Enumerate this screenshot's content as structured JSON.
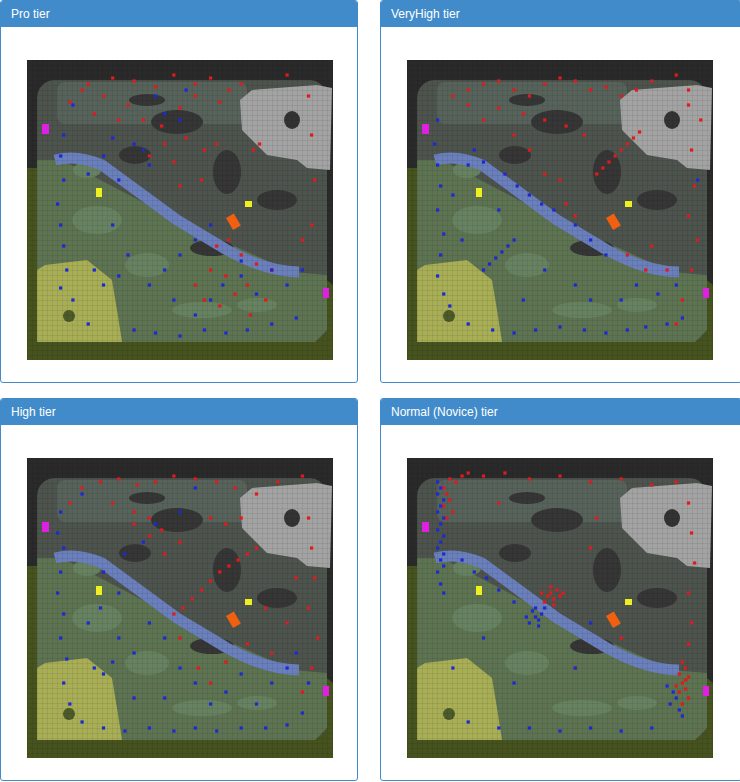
{
  "chart_data": [
    {
      "type": "scatter",
      "title": "Pro tier",
      "tick_labels": false,
      "xlim": [
        0,
        100
      ],
      "ylim": [
        0,
        100
      ],
      "series": [
        {
          "color": "#e31a1c",
          "marker": "square",
          "x": [
            20,
            28,
            35,
            42,
            48,
            55,
            60,
            66,
            25,
            33,
            38,
            44,
            50,
            52,
            58,
            62,
            74,
            76,
            45,
            48,
            40,
            30,
            22,
            18,
            14,
            55,
            63,
            70,
            92,
            93,
            94,
            93,
            85,
            60,
            65,
            68,
            72,
            70,
            63,
            58,
            75,
            66,
            62,
            55,
            73,
            80,
            78,
            90,
            57,
            50
          ],
          "values": [
            92,
            94,
            93,
            91,
            95,
            92,
            94,
            90,
            88,
            85,
            80,
            78,
            84,
            74,
            70,
            72,
            70,
            72,
            72,
            66,
            68,
            80,
            82,
            90,
            86,
            88,
            86,
            92,
            88,
            75,
            60,
            45,
            95,
            30,
            28,
            22,
            25,
            35,
            18,
            20,
            32,
            40,
            38,
            25,
            15,
            30,
            20,
            40,
            60,
            58
          ]
        },
        {
          "color": "#1c2ad6",
          "marker": "square",
          "x": [
            12,
            11,
            12,
            10,
            11,
            12,
            13,
            11,
            15,
            20,
            25,
            30,
            28,
            35,
            38,
            40,
            42,
            45,
            50,
            52,
            15,
            22,
            25,
            30,
            35,
            42,
            50,
            58,
            65,
            72,
            80,
            88,
            60,
            64,
            70,
            75,
            55,
            48,
            40,
            33,
            55,
            60,
            70,
            80,
            90,
            85,
            45,
            50,
            20,
            28
          ],
          "values": [
            75,
            68,
            60,
            52,
            45,
            38,
            30,
            24,
            20,
            62,
            68,
            60,
            74,
            72,
            70,
            65,
            88,
            82,
            80,
            90,
            85,
            30,
            25,
            28,
            10,
            9,
            8,
            10,
            9,
            10,
            12,
            14,
            20,
            25,
            28,
            22,
            15,
            20,
            25,
            35,
            40,
            45,
            33,
            30,
            30,
            25,
            30,
            35,
            12,
            45
          ]
        }
      ]
    },
    {
      "type": "scatter",
      "title": "VeryHigh tier",
      "tick_labels": false,
      "xlim": [
        0,
        100
      ],
      "ylim": [
        0,
        100
      ],
      "series": [
        {
          "color": "#e31a1c",
          "marker": "square",
          "x": [
            15,
            20,
            25,
            30,
            35,
            40,
            45,
            50,
            55,
            60,
            65,
            70,
            75,
            80,
            88,
            30,
            38,
            45,
            52,
            58,
            62,
            64,
            66,
            68,
            70,
            72,
            74,
            76,
            50,
            45,
            40,
            35,
            92,
            93,
            94,
            92,
            95,
            93,
            90,
            88,
            78,
            72,
            80,
            85,
            92,
            96,
            52,
            55,
            25,
            20
          ],
          "values": [
            88,
            90,
            92,
            93,
            90,
            88,
            92,
            94,
            93,
            90,
            91,
            88,
            90,
            93,
            95,
            84,
            82,
            80,
            78,
            75,
            62,
            64,
            66,
            68,
            70,
            72,
            74,
            76,
            60,
            62,
            70,
            75,
            85,
            70,
            58,
            48,
            40,
            30,
            20,
            12,
            30,
            35,
            38,
            30,
            90,
            80,
            52,
            48,
            80,
            85
          ]
        },
        {
          "color": "#1c2ad6",
          "marker": "square",
          "x": [
            10,
            9,
            10,
            11,
            10,
            12,
            11,
            10,
            12,
            14,
            20,
            28,
            35,
            42,
            50,
            58,
            65,
            72,
            78,
            85,
            90,
            25,
            27,
            29,
            31,
            33,
            35,
            20,
            22,
            25,
            32,
            36,
            40,
            44,
            48,
            55,
            60,
            65,
            45,
            55,
            60,
            70,
            75,
            82,
            88,
            30,
            18,
            38,
            15,
            95
          ],
          "values": [
            80,
            72,
            65,
            58,
            50,
            42,
            35,
            28,
            22,
            18,
            12,
            10,
            9,
            10,
            11,
            10,
            9,
            10,
            11,
            12,
            14,
            30,
            32,
            34,
            36,
            38,
            40,
            65,
            70,
            66,
            62,
            58,
            55,
            52,
            50,
            45,
            40,
            35,
            30,
            25,
            20,
            20,
            25,
            22,
            25,
            50,
            40,
            20,
            55,
            60
          ]
        }
      ]
    },
    {
      "type": "scatter",
      "title": "High tier",
      "tick_labels": false,
      "xlim": [
        0,
        100
      ],
      "ylim": [
        0,
        100
      ],
      "series": [
        {
          "color": "#e31a1c",
          "marker": "square",
          "x": [
            14,
            18,
            24,
            30,
            36,
            42,
            48,
            55,
            62,
            68,
            75,
            82,
            90,
            28,
            35,
            40,
            44,
            50,
            45,
            40,
            35,
            48,
            51,
            54,
            57,
            60,
            63,
            66,
            69,
            72,
            75,
            60,
            65,
            70,
            92,
            93,
            94,
            92,
            95,
            93,
            90,
            80,
            72,
            85,
            78,
            56,
            60,
            65,
            50,
            88
          ],
          "values": [
            85,
            90,
            92,
            93,
            91,
            92,
            94,
            93,
            92,
            90,
            88,
            92,
            94,
            85,
            82,
            80,
            76,
            72,
            68,
            74,
            78,
            48,
            50,
            53,
            56,
            59,
            62,
            64,
            66,
            68,
            70,
            80,
            78,
            80,
            80,
            70,
            60,
            50,
            40,
            30,
            22,
            35,
            38,
            45,
            50,
            30,
            25,
            32,
            40,
            60
          ]
        },
        {
          "color": "#1c2ad6",
          "marker": "square",
          "x": [
            11,
            10,
            12,
            11,
            10,
            12,
            11,
            13,
            12,
            14,
            18,
            25,
            32,
            40,
            48,
            55,
            62,
            70,
            78,
            85,
            90,
            92,
            22,
            25,
            28,
            30,
            35,
            20,
            24,
            30,
            25,
            32,
            38,
            42,
            50,
            55,
            18,
            40,
            45,
            50,
            55,
            60,
            65,
            70,
            75,
            80,
            85,
            88,
            35,
            45
          ],
          "values": [
            82,
            75,
            70,
            62,
            55,
            48,
            40,
            33,
            25,
            18,
            12,
            10,
            9,
            10,
            9,
            10,
            9,
            10,
            10,
            11,
            15,
            25,
            30,
            28,
            32,
            40,
            35,
            45,
            50,
            55,
            62,
            68,
            72,
            78,
            82,
            90,
            88,
            45,
            40,
            30,
            25,
            18,
            22,
            28,
            18,
            25,
            30,
            35,
            20,
            20
          ]
        }
      ]
    },
    {
      "type": "scatter",
      "title": "Normal (Novice) tier",
      "tick_labels": false,
      "xlim": [
        0,
        100
      ],
      "ylim": [
        0,
        100
      ],
      "series": [
        {
          "color": "#e31a1c",
          "marker": "square",
          "x": [
            12,
            13,
            14,
            12,
            15,
            13,
            16,
            18,
            14,
            20,
            25,
            32,
            40,
            50,
            60,
            70,
            80,
            88,
            92,
            93,
            94,
            92,
            93,
            92,
            90,
            91,
            89,
            92,
            90,
            91,
            89,
            92,
            90,
            88,
            91,
            45,
            46,
            47,
            48,
            49,
            50,
            47,
            44,
            48,
            51,
            60,
            62,
            70,
            55,
            30
          ],
          "values": [
            90,
            88,
            86,
            84,
            82,
            80,
            92,
            94,
            93,
            95,
            94,
            95,
            93,
            94,
            92,
            93,
            91,
            92,
            85,
            75,
            65,
            55,
            45,
            38,
            32,
            30,
            28,
            27,
            25,
            23,
            22,
            20,
            18,
            24,
            26,
            52,
            54,
            55,
            53,
            56,
            54,
            57,
            55,
            51,
            55,
            70,
            80,
            40,
            30,
            85
          ]
        },
        {
          "color": "#1c2ad6",
          "marker": "square",
          "x": [
            10,
            11,
            10,
            12,
            11,
            10,
            12,
            11,
            10,
            12,
            11,
            10,
            12,
            11,
            12,
            10,
            11,
            12,
            40,
            42,
            41,
            43,
            44,
            42,
            39,
            45,
            43,
            35,
            30,
            26,
            22,
            18,
            88,
            86,
            89,
            87,
            85,
            90,
            80,
            70,
            60,
            50,
            40,
            30,
            20,
            15,
            25,
            35,
            55,
            60
          ],
          "values": [
            92,
            90,
            88,
            86,
            84,
            82,
            80,
            78,
            76,
            74,
            72,
            70,
            68,
            66,
            64,
            62,
            58,
            55,
            45,
            47,
            49,
            46,
            48,
            50,
            47,
            50,
            44,
            52,
            56,
            60,
            62,
            66,
            20,
            18,
            16,
            22,
            24,
            14,
            10,
            9,
            10,
            9,
            10,
            10,
            12,
            30,
            40,
            25,
            30,
            45
          ]
        }
      ]
    }
  ]
}
